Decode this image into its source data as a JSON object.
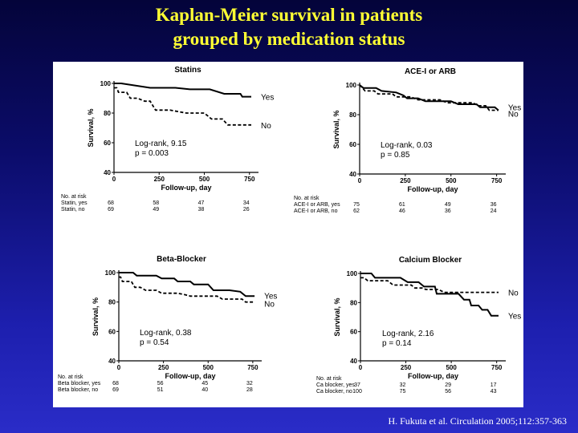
{
  "slide": {
    "title_line1": "Kaplan-Meier survival in patients",
    "title_line2": "grouped by medication status",
    "citation": "H. Fukuta et al. Circulation 2005;112:357-363"
  },
  "colors": {
    "title": "#ffff33",
    "line": "#000000"
  },
  "chart_data": [
    {
      "type": "line",
      "title": "Statins",
      "xlabel": "Follow-up, day",
      "ylabel": "Survival, %",
      "xlim": [
        0,
        800
      ],
      "ylim": [
        40,
        100
      ],
      "xticks": [
        0,
        250,
        500,
        750
      ],
      "yticks": [
        40,
        60,
        80,
        100
      ],
      "annotation": [
        "Log-rank, 9.15",
        "p = 0.003"
      ],
      "series": [
        {
          "name": "Yes",
          "style": "solid",
          "points": [
            [
              0,
              100
            ],
            [
              40,
              100
            ],
            [
              200,
              97
            ],
            [
              340,
              97
            ],
            [
              420,
              96
            ],
            [
              530,
              96
            ],
            [
              610,
              93
            ],
            [
              700,
              93
            ],
            [
              710,
              91
            ],
            [
              760,
              91
            ]
          ]
        },
        {
          "name": "No",
          "style": "dashed",
          "points": [
            [
              0,
              97
            ],
            [
              15,
              97
            ],
            [
              25,
              94
            ],
            [
              70,
              94
            ],
            [
              90,
              90
            ],
            [
              130,
              90
            ],
            [
              170,
              88
            ],
            [
              200,
              88
            ],
            [
              230,
              82
            ],
            [
              310,
              82
            ],
            [
              400,
              80
            ],
            [
              500,
              80
            ],
            [
              540,
              76
            ],
            [
              600,
              76
            ],
            [
              630,
              72
            ],
            [
              760,
              72
            ]
          ]
        }
      ],
      "risk_table": {
        "header": "No. at risk",
        "rows": [
          {
            "label": "Statin, yes",
            "values": [
              "68",
              "58",
              "47",
              "34"
            ]
          },
          {
            "label": "Statin, no",
            "values": [
              "69",
              "49",
              "38",
              "26"
            ]
          }
        ]
      }
    },
    {
      "type": "line",
      "title": "ACE-I or ARB",
      "xlabel": "Follow-up, day",
      "ylabel": "Survival, %",
      "xlim": [
        0,
        800
      ],
      "ylim": [
        40,
        100
      ],
      "xticks": [
        0,
        250,
        500,
        750
      ],
      "yticks": [
        40,
        60,
        80,
        100
      ],
      "annotation": [
        "Log-rank, 0.03",
        "p = 0.85"
      ],
      "series": [
        {
          "name": "Yes",
          "style": "solid",
          "points": [
            [
              0,
              100
            ],
            [
              20,
              98
            ],
            [
              90,
              98
            ],
            [
              120,
              96
            ],
            [
              200,
              95
            ],
            [
              240,
              93
            ],
            [
              260,
              91
            ],
            [
              320,
              91
            ],
            [
              360,
              89
            ],
            [
              500,
              89
            ],
            [
              540,
              87
            ],
            [
              640,
              87
            ],
            [
              660,
              85
            ],
            [
              740,
              85
            ],
            [
              760,
              83
            ]
          ]
        },
        {
          "name": "No",
          "style": "dashed",
          "points": [
            [
              0,
              100
            ],
            [
              30,
              96
            ],
            [
              80,
              96
            ],
            [
              100,
              94
            ],
            [
              180,
              94
            ],
            [
              200,
              92
            ],
            [
              280,
              92
            ],
            [
              320,
              90
            ],
            [
              440,
              90
            ],
            [
              480,
              88
            ],
            [
              620,
              88
            ],
            [
              650,
              86
            ],
            [
              690,
              86
            ],
            [
              710,
              83
            ],
            [
              760,
              83
            ]
          ]
        }
      ],
      "risk_table": {
        "header": "No. at risk",
        "rows": [
          {
            "label": "ACE-I or ARB, yes",
            "values": [
              "75",
              "61",
              "49",
              "36"
            ]
          },
          {
            "label": "ACE-I or ARB, no",
            "values": [
              "62",
              "46",
              "36",
              "24"
            ]
          }
        ]
      }
    },
    {
      "type": "line",
      "title": "Beta-Blocker",
      "xlabel": "Follow-up, day",
      "ylabel": "Survival, %",
      "xlim": [
        0,
        800
      ],
      "ylim": [
        40,
        100
      ],
      "xticks": [
        0,
        250,
        500,
        750
      ],
      "yticks": [
        40,
        60,
        80,
        100
      ],
      "annotation": [
        "Log-rank, 0.38",
        "p = 0.54"
      ],
      "series": [
        {
          "name": "Yes",
          "style": "solid",
          "points": [
            [
              0,
              100
            ],
            [
              80,
              100
            ],
            [
              100,
              98
            ],
            [
              210,
              98
            ],
            [
              240,
              96
            ],
            [
              310,
              96
            ],
            [
              330,
              94
            ],
            [
              400,
              94
            ],
            [
              420,
              92
            ],
            [
              500,
              92
            ],
            [
              530,
              88
            ],
            [
              620,
              88
            ],
            [
              680,
              87
            ],
            [
              710,
              84
            ],
            [
              760,
              84
            ]
          ]
        },
        {
          "name": "No",
          "style": "dashed",
          "points": [
            [
              0,
              97
            ],
            [
              10,
              97
            ],
            [
              20,
              94
            ],
            [
              70,
              94
            ],
            [
              90,
              90
            ],
            [
              120,
              90
            ],
            [
              150,
              88
            ],
            [
              210,
              88
            ],
            [
              240,
              86
            ],
            [
              330,
              86
            ],
            [
              370,
              85
            ],
            [
              400,
              84
            ],
            [
              550,
              84
            ],
            [
              580,
              82
            ],
            [
              690,
              82
            ],
            [
              710,
              80
            ],
            [
              760,
              80
            ]
          ]
        }
      ],
      "risk_table": {
        "header": "No. at risk",
        "rows": [
          {
            "label": "Beta blocker, yes",
            "values": [
              "68",
              "56",
              "45",
              "32"
            ]
          },
          {
            "label": "Beta blocker, no",
            "values": [
              "69",
              "51",
              "40",
              "28"
            ]
          }
        ]
      }
    },
    {
      "type": "line",
      "title": "Calcium  Blocker",
      "xlabel": "Follow-up, day",
      "ylabel": "Survival, %",
      "xlim": [
        0,
        800
      ],
      "ylim": [
        40,
        100
      ],
      "xticks": [
        0,
        250,
        500,
        750
      ],
      "yticks": [
        40,
        60,
        80,
        100
      ],
      "annotation": [
        "Log-rank, 2.16",
        "p = 0.14"
      ],
      "series": [
        {
          "name": "Yes",
          "style": "solid",
          "points": [
            [
              0,
              100
            ],
            [
              60,
              100
            ],
            [
              80,
              97
            ],
            [
              220,
              97
            ],
            [
              260,
              94
            ],
            [
              320,
              94
            ],
            [
              350,
              91
            ],
            [
              410,
              91
            ],
            [
              420,
              86
            ],
            [
              540,
              86
            ],
            [
              570,
              82
            ],
            [
              600,
              82
            ],
            [
              610,
              78
            ],
            [
              650,
              78
            ],
            [
              670,
              75
            ],
            [
              700,
              75
            ],
            [
              720,
              71
            ],
            [
              760,
              71
            ]
          ]
        },
        {
          "name": "No",
          "style": "dashed",
          "points": [
            [
              0,
              97
            ],
            [
              20,
              97
            ],
            [
              40,
              95
            ],
            [
              150,
              95
            ],
            [
              180,
              92
            ],
            [
              280,
              92
            ],
            [
              300,
              90
            ],
            [
              340,
              90
            ],
            [
              360,
              89
            ],
            [
              430,
              89
            ],
            [
              460,
              87
            ],
            [
              760,
              87
            ]
          ]
        }
      ],
      "risk_table": {
        "header": "No. at risk",
        "rows": [
          {
            "label": "Ca blocker, yes",
            "values": [
              "37",
              "32",
              "29",
              "17"
            ]
          },
          {
            "label": "Ca blocker, no",
            "values": [
              "100",
              "75",
              "56",
              "43"
            ]
          }
        ]
      }
    }
  ]
}
